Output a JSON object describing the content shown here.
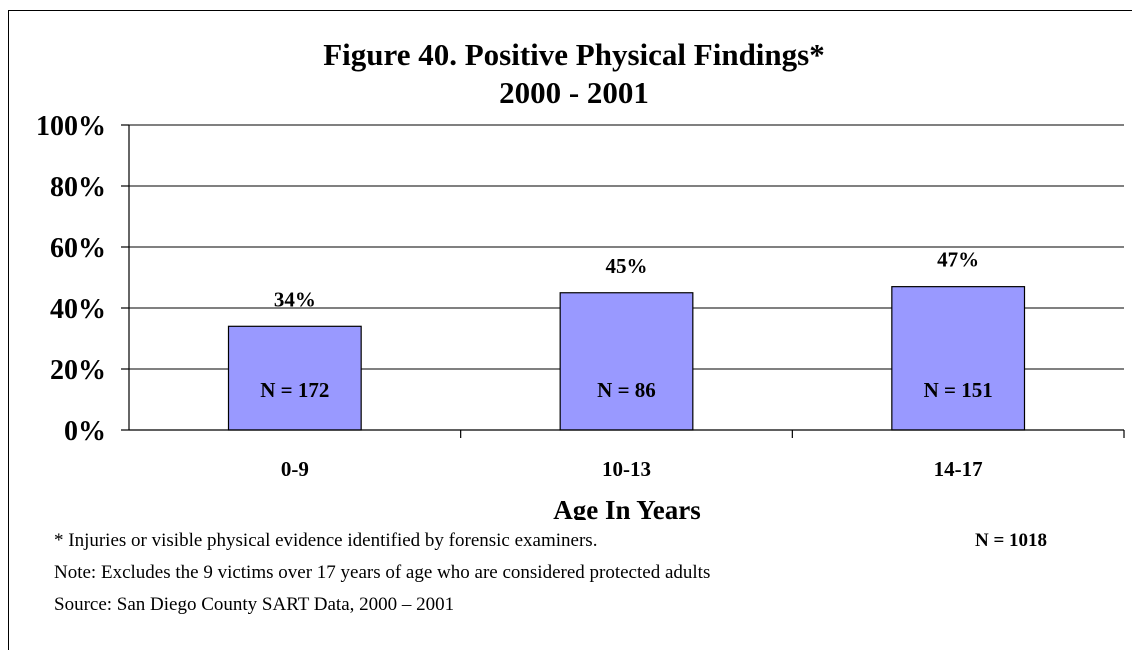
{
  "chart_data": {
    "type": "bar",
    "title_lines": [
      "Figure 40. Positive Physical Findings*",
      "2000 - 2001"
    ],
    "categories": [
      "0-9",
      "10-13",
      "14-17"
    ],
    "values": [
      34,
      45,
      47
    ],
    "data_labels": [
      "34%",
      "45%",
      "47%"
    ],
    "n_labels": [
      "N = 172",
      "N = 86",
      "N = 151"
    ],
    "xlabel": "Age In Years",
    "ylabel": "",
    "ylim": [
      0,
      100
    ],
    "yticks": [
      0,
      20,
      40,
      60,
      80,
      100
    ],
    "ytick_labels": [
      "0%",
      "20%",
      "40%",
      "60%",
      "80%",
      "100%"
    ],
    "grid": true,
    "bar_color": "#9999ff",
    "bar_edge_color": "#000000"
  },
  "footnotes": {
    "asterisk_note": "* Injuries or visible physical evidence identified by forensic examiners.",
    "total_n": "N = 1018",
    "exclusion_note": "Note: Excludes the 9 victims over 17 years of age who are considered protected adults",
    "source": "Source:  San Diego County SART Data, 2000 – 2001"
  }
}
